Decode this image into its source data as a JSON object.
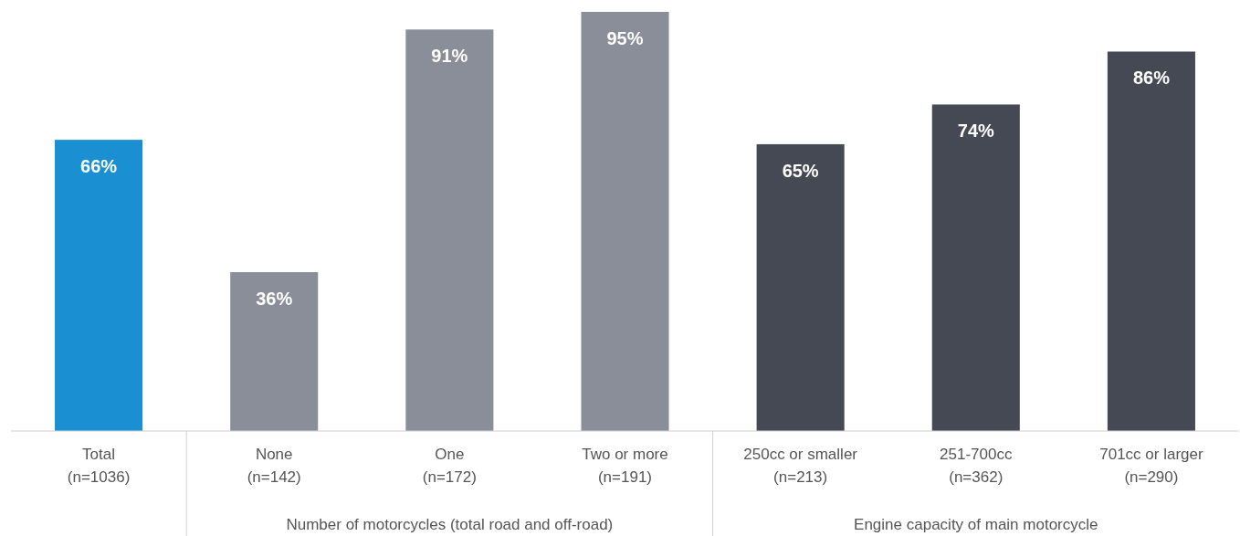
{
  "chart_data": {
    "type": "bar",
    "categories": [
      "Total\n(n=1036)",
      "None\n(n=142)",
      "One\n(n=172)",
      "Two or more\n(n=191)",
      "250cc or smaller\n(n=213)",
      "251-700cc\n(n=362)",
      "701cc or larger\n(n=290)"
    ],
    "values": [
      66,
      36,
      91,
      95,
      65,
      74,
      86
    ],
    "colors": [
      "#1a8fd1",
      "#8a8e99",
      "#8a8e99",
      "#8a8e99",
      "#454954",
      "#454954",
      "#454954"
    ],
    "value_labels": [
      "66%",
      "36%",
      "91%",
      "95%",
      "65%",
      "74%",
      "86%"
    ],
    "annotations": [
      "Number of motorcycles (total road and off-road)",
      "Engine capacity of main motorcycle"
    ]
  }
}
